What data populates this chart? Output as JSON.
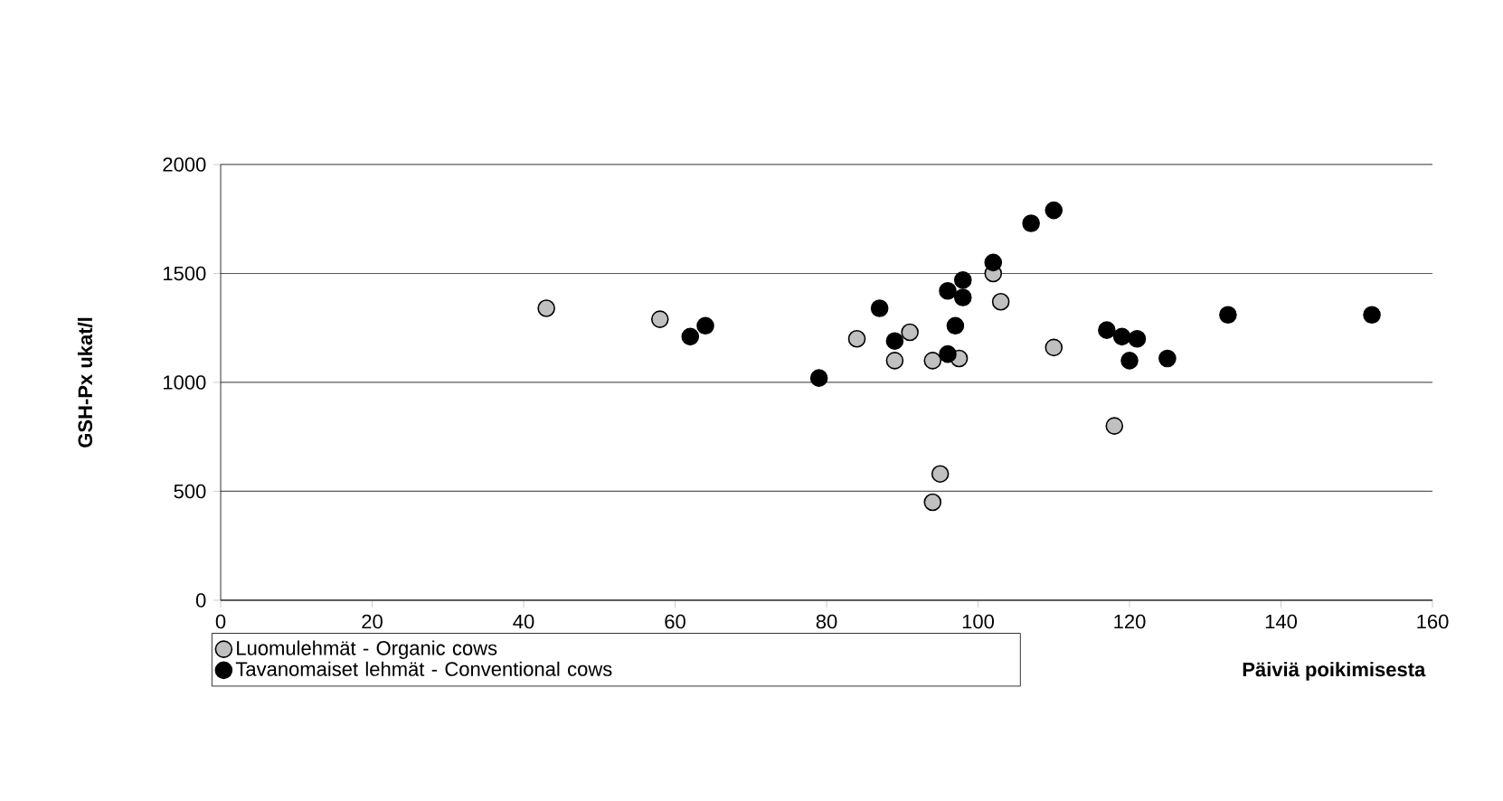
{
  "chart_data": {
    "type": "scatter",
    "xlabel": "Päiviä poikimisesta",
    "ylabel": "GSH-Px ukat/l",
    "xlim": [
      0,
      160
    ],
    "xticks": [
      0,
      20,
      40,
      60,
      80,
      100,
      120,
      140,
      160
    ],
    "ylim": [
      0,
      2000
    ],
    "yticks": [
      0,
      500,
      1000,
      1500,
      2000
    ],
    "grid": "y",
    "legend": "bottom left",
    "marker": "circle",
    "series": [
      {
        "name": "Luomulehmät - Organic cows",
        "color": "#c0c0c0",
        "x": [
          43,
          58,
          84,
          89,
          91,
          94,
          94,
          95,
          97.5,
          102,
          103,
          110,
          118
        ],
        "values": [
          1340,
          1290,
          1200,
          1100,
          1230,
          1100,
          450,
          580,
          1110,
          1500,
          1370,
          1160,
          800
        ]
      },
      {
        "name": "Tavanomaiset lehmät - Conventional cows",
        "color": "#000000",
        "x": [
          62,
          64,
          79,
          87,
          89,
          96,
          97,
          96,
          98,
          98,
          102,
          107,
          110,
          117,
          119,
          120,
          121,
          125,
          133,
          152
        ],
        "values": [
          1210,
          1260,
          1020,
          1340,
          1190,
          1130,
          1260,
          1420,
          1470,
          1390,
          1550,
          1730,
          1790,
          1240,
          1210,
          1100,
          1200,
          1110,
          1310,
          1310
        ]
      }
    ]
  }
}
